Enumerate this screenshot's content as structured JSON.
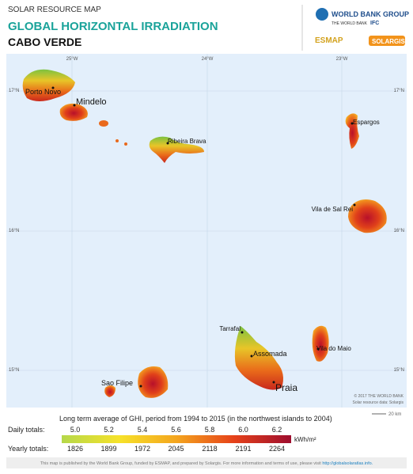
{
  "header": {
    "kicker": "SOLAR RESOURCE MAP",
    "title": "GLOBAL HORIZONTAL IRRADIATION",
    "country": "CABO VERDE"
  },
  "logos": {
    "wbg": "WORLD BANK GROUP",
    "wb": "THE WORLD BANK",
    "ifc": "IFC",
    "esmap": "ESMAP",
    "solargis": "SOLARGIS"
  },
  "map": {
    "lon_labels": [
      "25°W",
      "24°W",
      "23°W"
    ],
    "lat_labels": [
      "17°N",
      "16°N",
      "15°N"
    ],
    "places": [
      "Porto Novo",
      "Mindelo",
      "Ribeira Brava",
      "Espargos",
      "Vila de Sal Rei",
      "Tarrafal",
      "Assomada",
      "Vila do Maio",
      "Praia",
      "Sao Filipe"
    ],
    "credit": [
      "© 2017 THE WORLD BANK",
      "Solar resource data: Solargis"
    ],
    "scale": "20 km"
  },
  "legend": {
    "title": "Long term average of GHI, period from 1994 to 2015 (in the northwest islands to 2004)",
    "daily_label": "Daily totals:",
    "daily_values": [
      "5.0",
      "5.2",
      "5.4",
      "5.6",
      "5.8",
      "6.0",
      "6.2"
    ],
    "unit": "kWh/m²",
    "yearly_label": "Yearly totals:",
    "yearly_values": [
      "1826",
      "1899",
      "1972",
      "2045",
      "2118",
      "2191",
      "2264"
    ]
  },
  "footer": {
    "text": "This map is published by the World Bank Group, funded by ESMAP, and prepared by Solargis. For more information and terms of use, please visit",
    "link": "http://globalsolaratlas.info."
  }
}
